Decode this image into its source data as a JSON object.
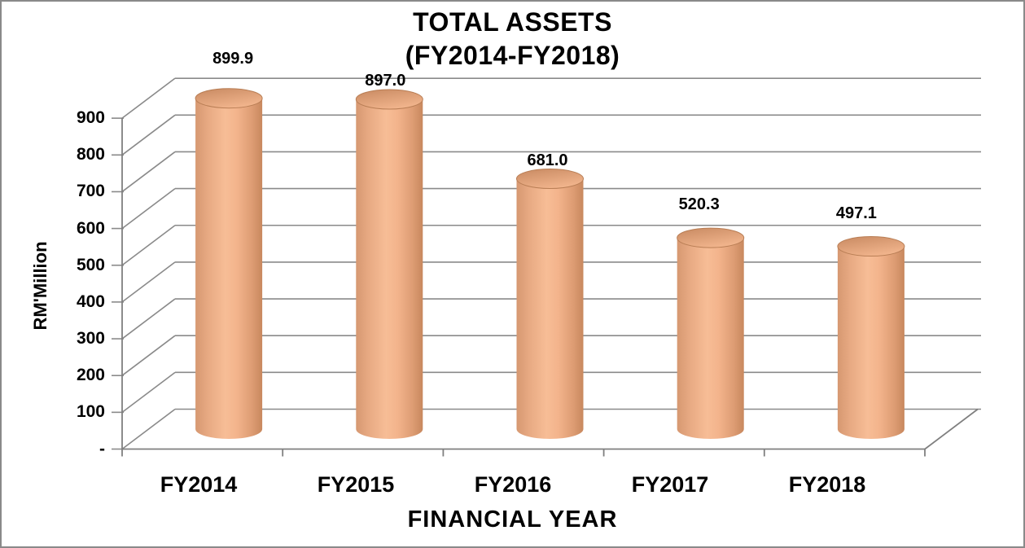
{
  "chart_data": {
    "type": "bar",
    "subtype": "3d-cylinder",
    "title": "TOTAL ASSETS",
    "subtitle": "(FY2014-FY2018)",
    "xlabel": "FINANCIAL YEAR",
    "ylabel": "RM'Million",
    "categories": [
      "FY2014",
      "FY2015",
      "FY2016",
      "FY2017",
      "FY2018"
    ],
    "values": [
      899.9,
      897.0,
      681.0,
      520.3,
      497.1
    ],
    "data_labels": [
      "899.9",
      "897.0",
      "681.0",
      "520.3",
      "497.1"
    ],
    "ylim": [
      0,
      900
    ],
    "ytick_step": 100,
    "ytick_labels": [
      "-",
      "100",
      "200",
      "300",
      "400",
      "500",
      "600",
      "700",
      "800",
      "900"
    ],
    "grid": true,
    "legend": false,
    "colors": {
      "bar_dark_left": "#D69871",
      "bar_main": "#F3B48C",
      "bar_light": "#F7BD96",
      "bar_edge": "#C8885E",
      "top_dark": "#C98B63",
      "top_light": "#F2B58D",
      "top_rim": "#B97E55",
      "gridline": "#8A8A8A",
      "axis": "#7F7F7F",
      "text": "#000000",
      "background": "#FFFFFF",
      "border": "#8A8A8A"
    }
  }
}
